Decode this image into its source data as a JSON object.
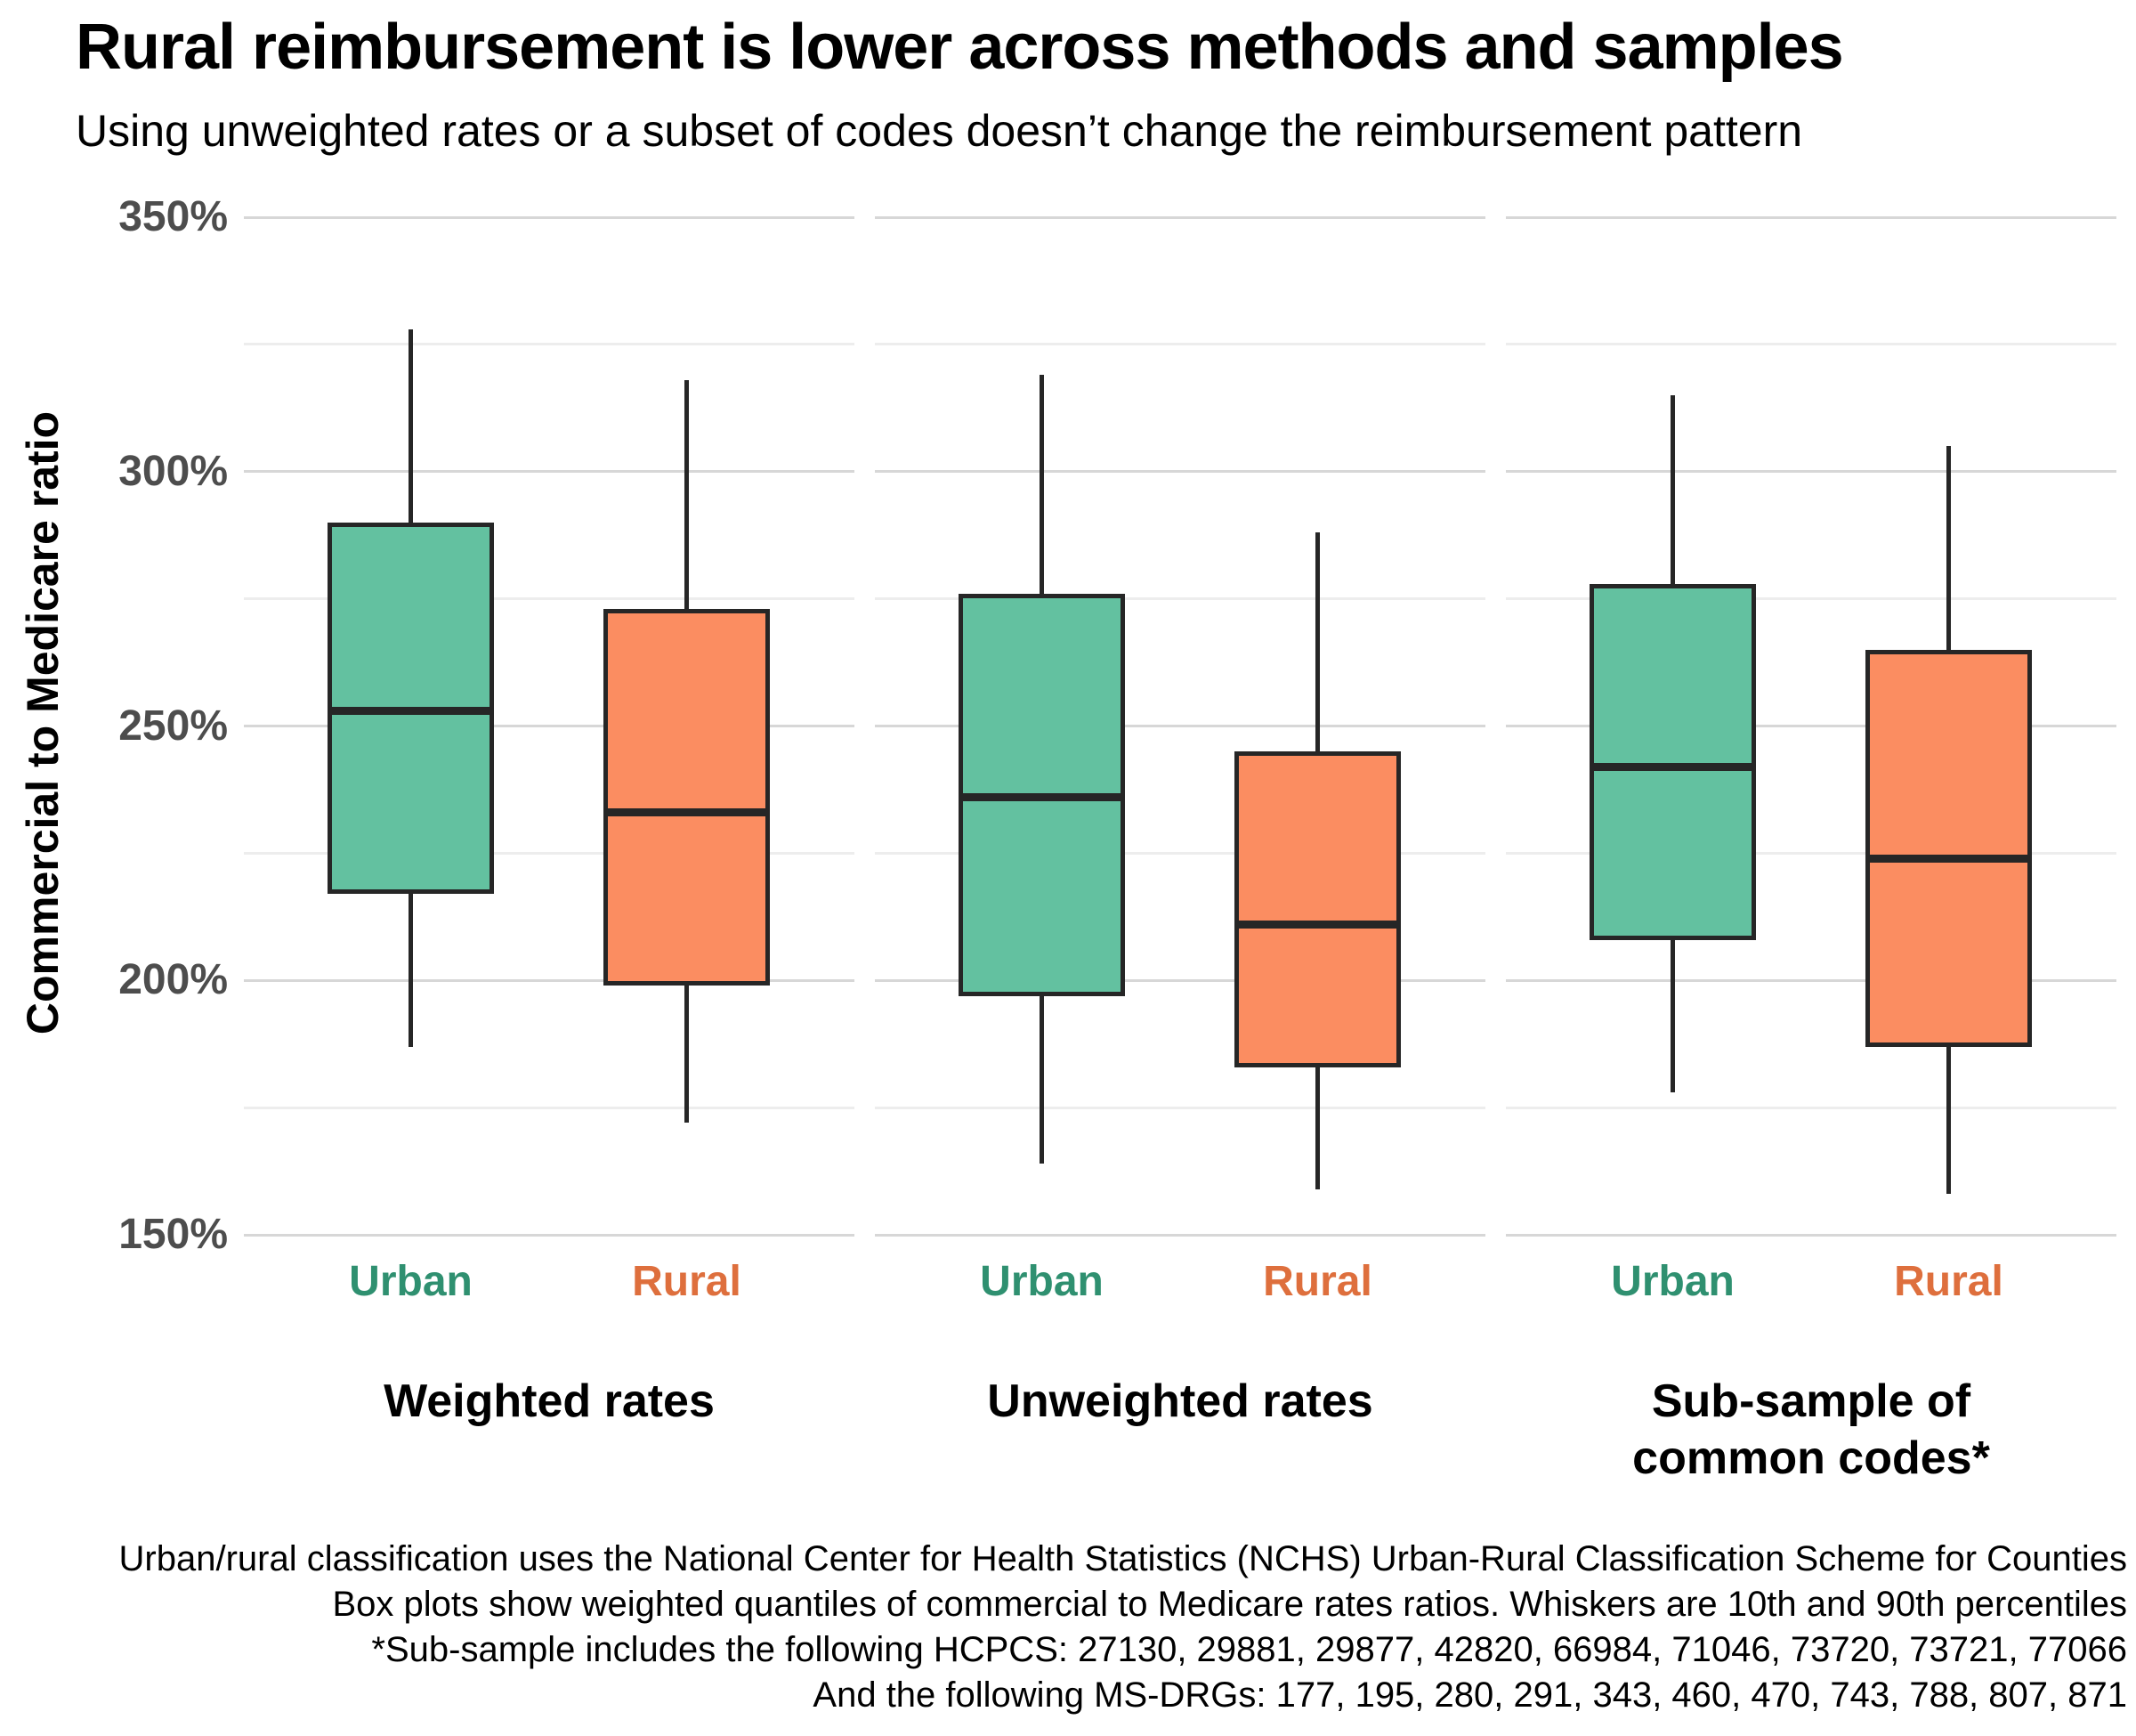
{
  "chart_data": {
    "type": "box",
    "title": "Rural reimbursement is lower across methods and samples",
    "subtitle": "Using unweighted rates or a subset of codes doesn’t change the reimbursement pattern",
    "ylabel": "Commercial to Medicare ratio",
    "y_axis": {
      "unit": "%",
      "ylim": [
        150,
        350
      ],
      "major_ticks": [
        150,
        200,
        250,
        300,
        350
      ],
      "tick_labels": [
        "150%",
        "200%",
        "250%",
        "300%",
        "350%"
      ],
      "minor_ticks": [
        175,
        225,
        275,
        325
      ],
      "grid": "horizontal-only"
    },
    "whisker_definition": "Whiskers are 10th and 90th percentiles",
    "series_colors": {
      "Urban": "#63c1a0",
      "Rural": "#fb8d61"
    },
    "label_colors": {
      "Urban": "#2f9070",
      "Rural": "#de6f3d"
    },
    "groups": [
      {
        "label": "Weighted rates",
        "label_lines": [
          "Weighted rates"
        ],
        "boxes": [
          {
            "name": "Urban",
            "p10": 187,
            "q1": 217,
            "median": 253,
            "q3": 290,
            "p90": 328
          },
          {
            "name": "Rural",
            "p10": 172,
            "q1": 199,
            "median": 233,
            "q3": 273,
            "p90": 318
          }
        ]
      },
      {
        "label": "Unweighted rates",
        "label_lines": [
          "Unweighted rates"
        ],
        "boxes": [
          {
            "name": "Urban",
            "p10": 164,
            "q1": 197,
            "median": 236,
            "q3": 276,
            "p90": 319
          },
          {
            "name": "Rural",
            "p10": 159,
            "q1": 183,
            "median": 211,
            "q3": 245,
            "p90": 288
          }
        ]
      },
      {
        "label": "Sub-sample of common codes*",
        "label_lines": [
          "Sub-sample of",
          "common codes*"
        ],
        "boxes": [
          {
            "name": "Urban",
            "p10": 178,
            "q1": 208,
            "median": 242,
            "q3": 278,
            "p90": 315
          },
          {
            "name": "Rural",
            "p10": 158,
            "q1": 187,
            "median": 224,
            "q3": 265,
            "p90": 305
          }
        ]
      }
    ]
  },
  "footnotes": {
    "lines": [
      "Urban/rural classification uses the National Center for Health Statistics (NCHS) Urban-Rural Classification Scheme for Counties",
      "Box plots show weighted quantiles of commercial to Medicare rates ratios. Whiskers are 10th and 90th percentiles",
      "*Sub-sample includes the following HCPCS: 27130, 29881, 29877, 42820, 66984, 71046, 73720, 73721, 77066",
      "And the following MS-DRGs: 177, 195, 280, 291, 343, 460, 470, 743, 788, 807, 871"
    ]
  },
  "colors": {
    "box_outline": "#262626",
    "grid_major": "#d7d7d7",
    "grid_minor": "#ededed",
    "tick_text": "#4d4d4d",
    "text": "#000000",
    "background": "#ffffff"
  }
}
